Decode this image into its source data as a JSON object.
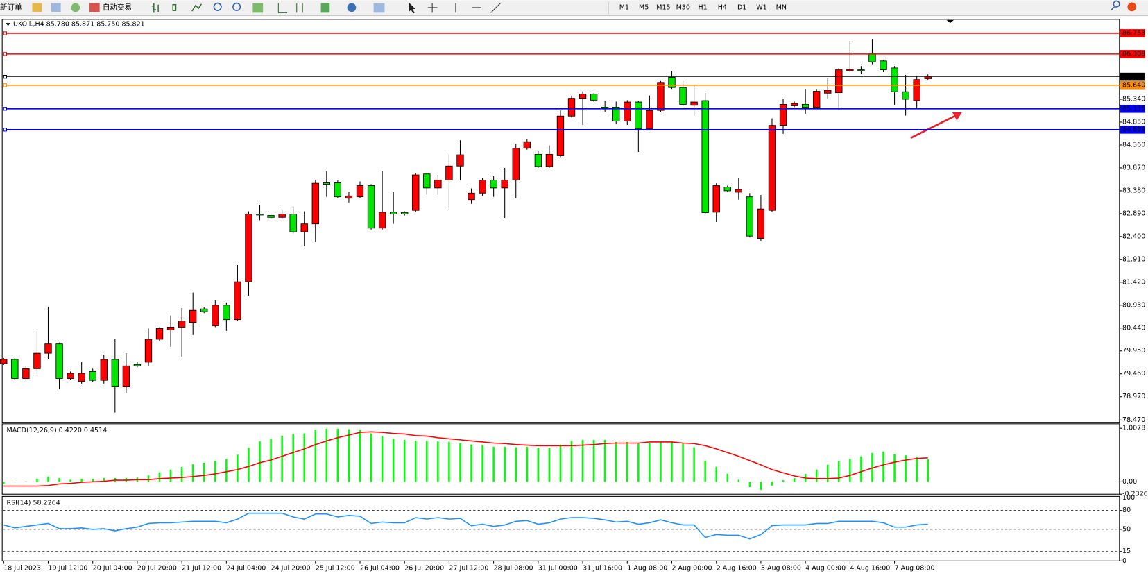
{
  "toolbar": {
    "new_order": "新订单",
    "auto_trading": "自动交易",
    "timeframes": [
      "M1",
      "M5",
      "M15",
      "M30",
      "H1",
      "H4",
      "D1",
      "W1",
      "MN"
    ]
  },
  "chart_data": [
    {
      "type": "candlestick",
      "title": "UKOil.,H4  85.780 85.871 85.750 85.821",
      "categories": [
        "18 Jul 2023",
        null,
        null,
        null,
        "19 Jul 12:00",
        null,
        null,
        null,
        "20 Jul 04:00",
        null,
        null,
        null,
        "20 Jul 20:00",
        null,
        null,
        null,
        "21 Jul 12:00",
        null,
        null,
        null,
        "24 Jul 04:00",
        null,
        null,
        null,
        "24 Jul 20:00",
        null,
        null,
        null,
        "25 Jul 12:00",
        null,
        null,
        null,
        "26 Jul 04:00",
        null,
        null,
        null,
        "26 Jul 20:00",
        null,
        null,
        null,
        "27 Jul 12:00",
        null,
        null,
        null,
        "28 Jul 08:00",
        null,
        null,
        null,
        "31 Jul 00:00",
        null,
        null,
        null,
        "31 Jul 16:00",
        null,
        null,
        null,
        "1 Aug 08:00",
        null,
        null,
        null,
        "2 Aug 00:00",
        null,
        null,
        null,
        "2 Aug 16:00",
        null,
        null,
        null,
        "3 Aug 08:00",
        null,
        null,
        null,
        "4 Aug 00:00",
        null,
        null,
        null,
        "4 Aug 16:00",
        null,
        null,
        null,
        "7 Aug 08:00",
        null,
        null,
        null
      ],
      "open": [
        79.68,
        79.77,
        79.36,
        79.57,
        79.9,
        80.1,
        79.36,
        79.3,
        79.51,
        79.32,
        79.77,
        79.18,
        79.66,
        79.71,
        80.2,
        80.4,
        80.46,
        80.56,
        80.85,
        80.49,
        80.93,
        80.62,
        81.43,
        82.88,
        82.85,
        82.81,
        82.88,
        82.5,
        82.67,
        83.55,
        83.55,
        83.22,
        83.25,
        83.49,
        82.58,
        82.92,
        82.91,
        82.96,
        83.74,
        83.44,
        83.61,
        83.91,
        83.19,
        83.33,
        83.61,
        83.44,
        83.61,
        84.29,
        84.16,
        83.9,
        84.13,
        84.98,
        85.36,
        85.45,
        85.17,
        85.17,
        84.87,
        85.28,
        84.71,
        85.1,
        85.81,
        85.59,
        85.21,
        85.31,
        82.92,
        83.46,
        83.35,
        83.25,
        82.36,
        82.96,
        84.78,
        85.2,
        85.23,
        85.17,
        85.47,
        85.48,
        85.95,
        85.97,
        86.33,
        86.16,
        86.01,
        85.5,
        85.31,
        85.78
      ],
      "high": [
        79.8,
        79.8,
        79.62,
        80.35,
        80.9,
        80.13,
        79.51,
        79.71,
        79.57,
        79.87,
        80.2,
        79.9,
        79.71,
        80.43,
        80.46,
        80.71,
        80.87,
        81.2,
        80.89,
        81.03,
        80.99,
        81.79,
        82.94,
        83.08,
        82.89,
        82.96,
        83.02,
        82.94,
        83.6,
        83.8,
        83.6,
        83.35,
        83.58,
        83.52,
        83.8,
        83.35,
        82.94,
        83.76,
        83.76,
        83.72,
        84.16,
        84.46,
        83.43,
        83.65,
        83.69,
        83.87,
        84.38,
        84.48,
        84.24,
        84.35,
        85.1,
        85.42,
        85.51,
        85.47,
        85.31,
        85.29,
        85.32,
        85.31,
        85.42,
        85.73,
        85.94,
        85.76,
        85.65,
        85.47,
        83.54,
        83.49,
        83.65,
        83.33,
        83.29,
        84.93,
        85.34,
        85.29,
        85.56,
        85.56,
        85.79,
        86.01,
        86.59,
        86.05,
        86.63,
        86.19,
        86.05,
        85.86,
        85.83,
        85.871
      ],
      "low": [
        79.65,
        79.33,
        79.33,
        79.49,
        79.77,
        79.14,
        79.33,
        79.25,
        79.29,
        79.25,
        78.63,
        79.04,
        79.6,
        79.63,
        80.16,
        80.04,
        79.83,
        80.29,
        80.76,
        80.46,
        80.38,
        80.59,
        81.12,
        82.75,
        82.78,
        82.78,
        82.47,
        82.19,
        82.28,
        83.25,
        83.22,
        83.13,
        83.22,
        82.55,
        82.55,
        82.67,
        82.85,
        82.92,
        83.3,
        83.3,
        82.96,
        83.6,
        83.1,
        83.27,
        83.25,
        82.8,
        83.22,
        84.26,
        83.87,
        83.87,
        84.1,
        84.95,
        84.79,
        85.29,
        85.07,
        84.81,
        84.79,
        84.21,
        84.68,
        85.07,
        85.56,
        85.2,
        84.99,
        82.88,
        82.71,
        83.35,
        83.19,
        82.38,
        82.31,
        82.92,
        84.6,
        85.17,
        85.03,
        85.14,
        85.34,
        85.1,
        85.92,
        85.89,
        86.09,
        85.92,
        85.21,
        84.99,
        85.15,
        85.75
      ],
      "close": [
        79.77,
        79.36,
        79.57,
        79.9,
        80.1,
        79.36,
        79.47,
        79.47,
        79.32,
        79.77,
        79.18,
        79.63,
        79.63,
        80.2,
        80.43,
        80.46,
        80.59,
        80.82,
        80.79,
        80.93,
        80.62,
        81.43,
        82.88,
        82.86,
        82.81,
        82.88,
        82.5,
        82.67,
        83.54,
        83.52,
        83.25,
        83.27,
        83.49,
        82.58,
        82.92,
        82.88,
        82.88,
        83.72,
        83.44,
        83.61,
        83.91,
        84.15,
        83.33,
        83.61,
        83.44,
        83.61,
        84.29,
        84.43,
        83.9,
        84.16,
        84.98,
        85.36,
        85.45,
        85.32,
        85.14,
        84.87,
        85.28,
        84.71,
        85.1,
        85.7,
        85.59,
        85.23,
        85.28,
        82.91,
        83.49,
        83.38,
        83.41,
        82.41,
        82.99,
        84.78,
        85.23,
        85.25,
        85.17,
        85.51,
        85.53,
        85.97,
        85.98,
        85.95,
        86.14,
        85.97,
        85.5,
        85.34,
        85.76,
        85.821
      ],
      "up_color": "#ff0000",
      "down_color": "#00e600",
      "ylim": [
        78.42,
        87.02
      ],
      "yticks": [
        {
          "value": 85.34,
          "label": "85.340"
        },
        {
          "value": 84.85,
          "label": "84.850"
        },
        {
          "value": 84.36,
          "label": "84.360"
        },
        {
          "value": 83.87,
          "label": "83.870"
        },
        {
          "value": 83.38,
          "label": "83.380"
        },
        {
          "value": 82.89,
          "label": "82.890"
        },
        {
          "value": 82.4,
          "label": "82.400"
        },
        {
          "value": 81.91,
          "label": "81.910"
        },
        {
          "value": 81.42,
          "label": "81.420"
        },
        {
          "value": 80.93,
          "label": "80.930"
        },
        {
          "value": 80.44,
          "label": "80.440"
        },
        {
          "value": 79.95,
          "label": "79.950"
        },
        {
          "value": 79.46,
          "label": "79.460"
        },
        {
          "value": 78.97,
          "label": "78.970"
        },
        {
          "value": 78.47,
          "label": "78.470"
        }
      ],
      "hlines": [
        {
          "value": 86.753,
          "label": "86.753",
          "color": "#ff0000"
        },
        {
          "value": 86.308,
          "label": "86.308",
          "color": "#ff0000"
        },
        {
          "value": 85.821,
          "label": "85.821",
          "color": "#000000"
        },
        {
          "value": 85.64,
          "label": "85.640",
          "color": "#ff8c00"
        },
        {
          "value": 85.135,
          "label": "85.135",
          "color": "#0000ff"
        },
        {
          "value": 84.689,
          "label": "84.689",
          "color": "#0000ff"
        }
      ]
    },
    {
      "type": "combo",
      "title": "MACD(12,26,9) 0.4220 0.4514",
      "series": [
        {
          "type": "bar",
          "color": "#00ff00",
          "values": [
            -0.04,
            -0.01,
            0.01,
            0.06,
            0.1,
            0.07,
            0.04,
            0.06,
            0.06,
            0.07,
            0.07,
            0.07,
            0.08,
            0.12,
            0.18,
            0.23,
            0.28,
            0.33,
            0.36,
            0.4,
            0.43,
            0.51,
            0.64,
            0.76,
            0.81,
            0.87,
            0.9,
            0.91,
            0.98,
            1.0,
            1.0,
            0.99,
            0.98,
            0.91,
            0.86,
            0.81,
            0.79,
            0.77,
            0.77,
            0.76,
            0.75,
            0.73,
            0.7,
            0.69,
            0.66,
            0.66,
            0.65,
            0.66,
            0.64,
            0.64,
            0.7,
            0.77,
            0.79,
            0.79,
            0.79,
            0.75,
            0.75,
            0.73,
            0.73,
            0.76,
            0.76,
            0.73,
            0.65,
            0.4,
            0.28,
            0.15,
            0.04,
            -0.1,
            -0.15,
            -0.07,
            0.03,
            0.07,
            0.15,
            0.23,
            0.32,
            0.39,
            0.43,
            0.48,
            0.54,
            0.57,
            0.52,
            0.5,
            0.47,
            0.422
          ]
        },
        {
          "type": "line",
          "color": "#ff0000",
          "values": [
            -0.08,
            -0.08,
            -0.08,
            -0.08,
            -0.07,
            -0.04,
            -0.03,
            -0.01,
            0.0,
            0.01,
            0.03,
            0.03,
            0.04,
            0.04,
            0.06,
            0.07,
            0.08,
            0.1,
            0.12,
            0.15,
            0.19,
            0.23,
            0.29,
            0.36,
            0.41,
            0.48,
            0.55,
            0.62,
            0.7,
            0.77,
            0.83,
            0.88,
            0.93,
            0.94,
            0.93,
            0.91,
            0.9,
            0.87,
            0.86,
            0.83,
            0.81,
            0.79,
            0.77,
            0.75,
            0.73,
            0.72,
            0.7,
            0.69,
            0.68,
            0.68,
            0.68,
            0.68,
            0.69,
            0.7,
            0.72,
            0.73,
            0.73,
            0.73,
            0.75,
            0.75,
            0.75,
            0.73,
            0.72,
            0.68,
            0.62,
            0.55,
            0.48,
            0.4,
            0.32,
            0.23,
            0.17,
            0.11,
            0.07,
            0.06,
            0.06,
            0.07,
            0.12,
            0.19,
            0.26,
            0.32,
            0.37,
            0.41,
            0.44,
            0.4514
          ]
        }
      ],
      "ylim": [
        -0.2326,
        1.0078
      ],
      "yticks": [
        1.0078,
        {
          "value": 0,
          "label": "0.00"
        },
        -0.2326
      ]
    },
    {
      "type": "line",
      "title": "RSI(14) 58.2264",
      "color": "#1e90ff",
      "values": [
        57.0,
        52.3,
        54.7,
        57.0,
        59.3,
        51.2,
        51.2,
        52.3,
        50.0,
        51.2,
        47.7,
        51.2,
        53.5,
        59.3,
        60.5,
        60.5,
        61.6,
        62.8,
        62.8,
        62.8,
        60.5,
        66.3,
        75.6,
        75.6,
        75.6,
        75.6,
        69.8,
        66.3,
        74.4,
        74.4,
        69.8,
        72.1,
        70.9,
        59.3,
        61.6,
        60.5,
        60.5,
        68.6,
        66.3,
        68.6,
        66.3,
        67.4,
        55.8,
        58.1,
        54.7,
        57.0,
        62.8,
        64.0,
        58.1,
        60.5,
        66.3,
        68.6,
        68.6,
        67.4,
        65.1,
        61.6,
        62.8,
        58.1,
        60.5,
        65.1,
        60.5,
        57.0,
        57.0,
        37.2,
        41.9,
        40.7,
        40.7,
        34.9,
        41.9,
        55.8,
        57.0,
        57.0,
        57.0,
        59.3,
        59.3,
        62.8,
        62.8,
        62.8,
        62.8,
        60.5,
        53.5,
        53.5,
        57.0,
        58.2264
      ],
      "ylim": [
        0,
        100
      ],
      "yticks": [
        100,
        80,
        50,
        15,
        0
      ]
    }
  ]
}
